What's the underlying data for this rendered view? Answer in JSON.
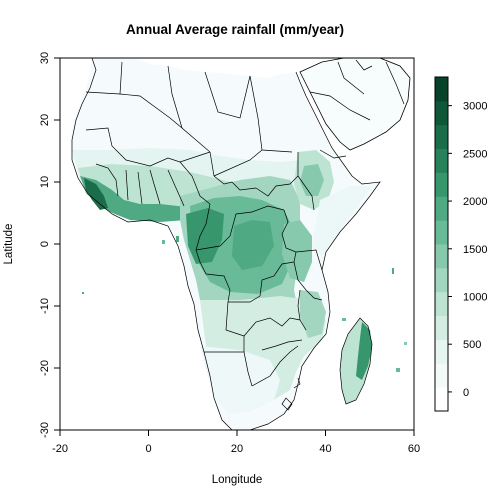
{
  "title": "Annual Average rainfall (mm/year)",
  "x_axis": {
    "label": "Longitude",
    "range": [
      -20,
      60
    ],
    "ticks": [
      -20,
      0,
      20,
      40,
      60
    ]
  },
  "y_axis": {
    "label": "Latitude",
    "range": [
      -30,
      30
    ],
    "ticks": [
      -30,
      -20,
      -10,
      0,
      10,
      20,
      30
    ]
  },
  "legend": {
    "position": "right",
    "range": [
      -200,
      3300
    ],
    "ticks": [
      0,
      500,
      1000,
      1500,
      2000,
      2500,
      3000
    ],
    "colors": [
      "#ffffff",
      "#f3faf7",
      "#e6f5ef",
      "#d3ede2",
      "#bde3d3",
      "#a2d6c0",
      "#86c9ad",
      "#69bb98",
      "#4fa982",
      "#38966d",
      "#27815b",
      "#1a6c4a",
      "#0f5739",
      "#06432a"
    ]
  },
  "palette": {
    "land_dry": "#f7fcfd",
    "land_light": "#e5f5f9",
    "land_mid": "#ccece6",
    "land_wet": "#66c2a4",
    "land_verywet": "#238b45",
    "border": "#000000"
  }
}
